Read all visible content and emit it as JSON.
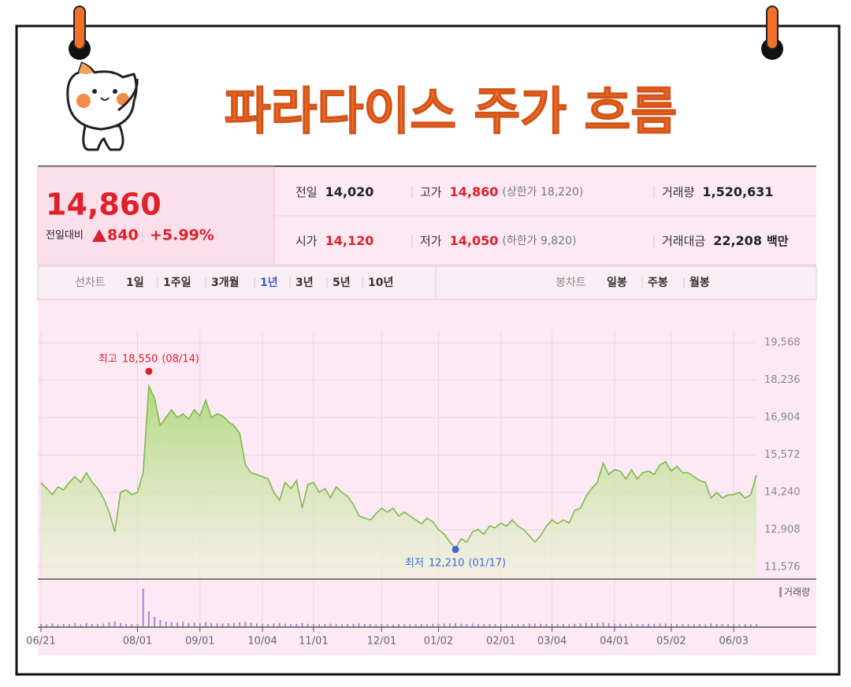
{
  "title": "파라다이스 주가 흐름",
  "quote": {
    "price": "14,860",
    "change_label": "전일대비",
    "change": "840",
    "change_pct": "+5.99%"
  },
  "stats": [
    {
      "label": "전일",
      "value": "14,020",
      "color": "#222222"
    },
    {
      "label": "고가",
      "value": "14,860",
      "note": "(상한가 18,220)",
      "color": "#e0202a"
    },
    {
      "label": "거래량",
      "value": "1,520,631",
      "color": "#222222"
    },
    {
      "label": "시가",
      "value": "14,120",
      "color": "#e0202a"
    },
    {
      "label": "저가",
      "value": "14,050",
      "note": "(하한가 9,820)",
      "color": "#e0202a"
    },
    {
      "label": "거래대금",
      "value": "22,208",
      "unit": "백만",
      "color": "#222222"
    }
  ],
  "tabs": {
    "line_label": "선차트",
    "line_periods": [
      "1일",
      "1주일",
      "3개월",
      "1년",
      "3년",
      "5년",
      "10년"
    ],
    "active": "1년",
    "candle_label": "봉차트",
    "candle_periods": [
      "일봉",
      "주봉",
      "월봉"
    ]
  },
  "chart_data": {
    "type": "line",
    "color": "#7dbb4b",
    "categories": [
      "06/21",
      null,
      null,
      null,
      null,
      null,
      null,
      null,
      null,
      null,
      null,
      null,
      null,
      null,
      null,
      null,
      null,
      "08/01",
      null,
      null,
      null,
      null,
      null,
      null,
      null,
      null,
      null,
      null,
      "09/01",
      null,
      null,
      null,
      null,
      null,
      null,
      null,
      null,
      null,
      null,
      "10/04",
      null,
      null,
      null,
      null,
      null,
      null,
      null,
      null,
      "11/01",
      null,
      null,
      null,
      null,
      null,
      null,
      null,
      null,
      null,
      null,
      null,
      "12/01",
      null,
      null,
      null,
      null,
      null,
      null,
      null,
      null,
      null,
      "01/02",
      null,
      null,
      null,
      null,
      null,
      null,
      null,
      null,
      null,
      null,
      "02/01",
      null,
      null,
      null,
      null,
      null,
      null,
      null,
      null,
      "03/04",
      null,
      null,
      null,
      null,
      null,
      null,
      null,
      null,
      null,
      null,
      "04/01",
      null,
      null,
      null,
      null,
      null,
      null,
      null,
      null,
      null,
      "05/02",
      null,
      null,
      null,
      null,
      null,
      null,
      null,
      null,
      null,
      null,
      "06/03",
      null,
      null,
      null,
      null
    ],
    "values": [
      14580,
      14380,
      14160,
      14440,
      14330,
      14600,
      14800,
      14600,
      14940,
      14600,
      14380,
      14040,
      13540,
      12840,
      14240,
      14330,
      14160,
      14240,
      14940,
      18025,
      17600,
      16620,
      16900,
      17180,
      16900,
      17040,
      16850,
      17180,
      16960,
      17520,
      16900,
      17040,
      16960,
      16760,
      16620,
      16340,
      15220,
      14940,
      14880,
      14800,
      14720,
      14240,
      13960,
      14600,
      14380,
      14660,
      13680,
      14520,
      14600,
      14240,
      14380,
      14040,
      14440,
      14240,
      14100,
      13820,
      13400,
      13320,
      13260,
      13480,
      13680,
      13540,
      13680,
      13400,
      13540,
      13400,
      13260,
      13120,
      13320,
      13200,
      12920,
      12750,
      12470,
      12250,
      12590,
      12470,
      12840,
      12920,
      12750,
      13040,
      12980,
      13150,
      13040,
      13260,
      13040,
      12920,
      12700,
      12470,
      12700,
      13040,
      13260,
      13120,
      13260,
      13150,
      13600,
      13680,
      14100,
      14380,
      14600,
      15280,
      14880,
      15050,
      15000,
      14720,
      15050,
      14720,
      14940,
      15000,
      14880,
      15220,
      15330,
      15000,
      15170,
      14940,
      14940,
      14800,
      14660,
      14600,
      14040,
      14240,
      14040,
      14160,
      14160,
      14240,
      14040,
      14160,
      14860
    ],
    "ylim": [
      11576,
      19568
    ],
    "yticks": [
      {
        "value": 19568,
        "label": "19,568"
      },
      {
        "value": 18236,
        "label": "18,236"
      },
      {
        "value": 16904,
        "label": "16,904"
      },
      {
        "value": 15572,
        "label": "15,572"
      },
      {
        "value": 14240,
        "label": "14,240"
      },
      {
        "value": 12908,
        "label": "12,908"
      },
      {
        "value": 11576,
        "label": "11,576"
      }
    ],
    "grid": true,
    "annotations": [
      {
        "label": "최고",
        "value": 18550,
        "value_label": "18,550",
        "date": "(08/14)",
        "color": "#e0202a",
        "position": "above"
      },
      {
        "label": "최저",
        "value": 12210,
        "value_label": "12,210",
        "date": "(01/17)",
        "color": "#3a6fd0",
        "position": "below"
      }
    ],
    "volume": {
      "name": "거래량",
      "color": "#9a8fd0",
      "ylim": [
        0,
        25000000
      ],
      "values": [
        1500000,
        1300000,
        1800000,
        1200000,
        1600000,
        1400000,
        1900000,
        1300000,
        2100000,
        1500000,
        1400000,
        1700000,
        2600000,
        3200000,
        2000000,
        1500000,
        1300000,
        1400000,
        24000000,
        9500000,
        6000000,
        4000000,
        3000000,
        2600000,
        2400000,
        2800000,
        2200000,
        2500000,
        2000000,
        2700000,
        2100000,
        1900000,
        1800000,
        2000000,
        2200000,
        2600000,
        3000000,
        2400000,
        1800000,
        1600000,
        1500000,
        1900000,
        2100000,
        1600000,
        1400000,
        1500000,
        2000000,
        1600000,
        1400000,
        1300000,
        1500000,
        1700000,
        1400000,
        1300000,
        1500000,
        1600000,
        1800000,
        1500000,
        1300000,
        1200000,
        1400000,
        1300000,
        1200000,
        1500000,
        1300000,
        1200000,
        1400000,
        1500000,
        1300000,
        1400000,
        1600000,
        1700000,
        1900000,
        2000000,
        1600000,
        1500000,
        1700000,
        1400000,
        1300000,
        1500000,
        1400000,
        1300000,
        1200000,
        1400000,
        1300000,
        1500000,
        1700000,
        1800000,
        1600000,
        1500000,
        1400000,
        1300000,
        1400000,
        1300000,
        1600000,
        1800000,
        2200000,
        2000000,
        2100000,
        2600000,
        1900000,
        1700000,
        1600000,
        1500000,
        1700000,
        1500000,
        1400000,
        1600000,
        1500000,
        1700000,
        1800000,
        1600000,
        1500000,
        1400000,
        1300000,
        1400000,
        1500000,
        1300000,
        1800000,
        1500000,
        1400000,
        1300000,
        1300000,
        1200000,
        1400000,
        1300000,
        1520631
      ]
    }
  }
}
